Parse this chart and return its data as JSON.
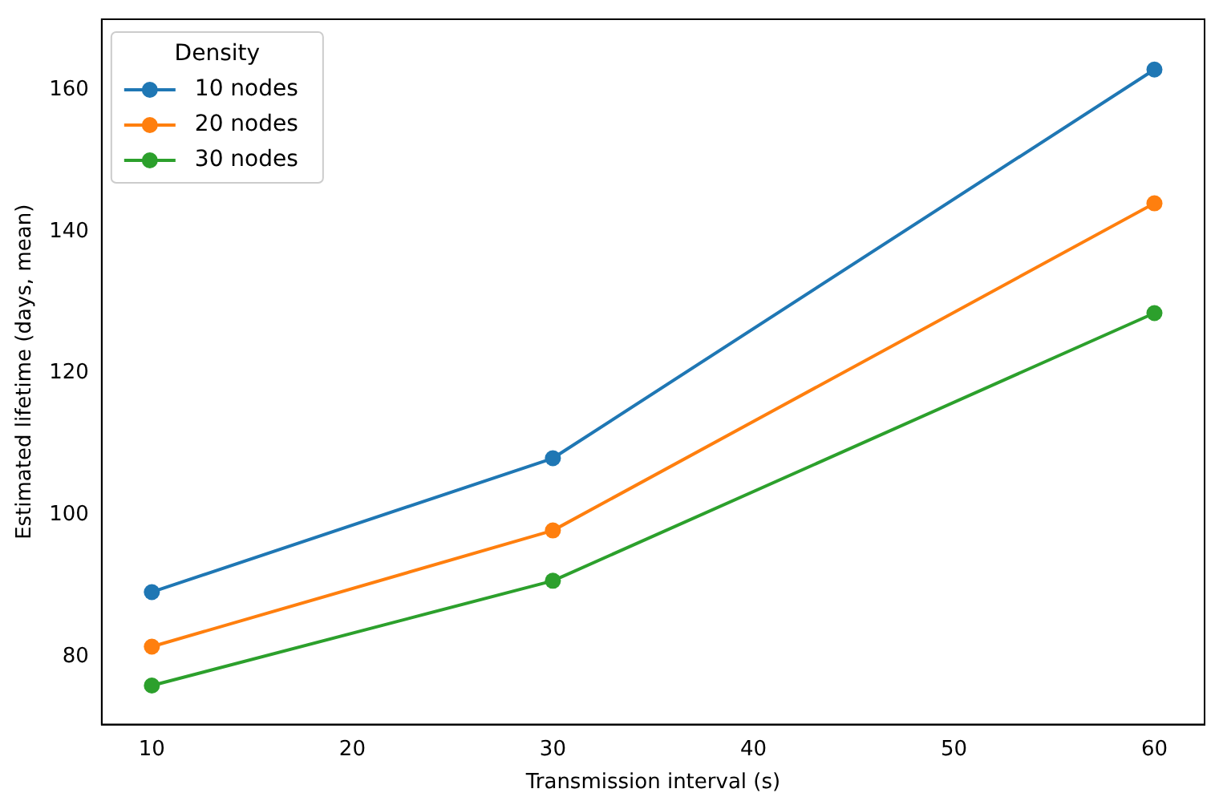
{
  "chart_data": {
    "type": "line",
    "xlabel": "Transmission interval (s)",
    "ylabel": "Estimated lifetime (days, mean)",
    "legend_title": "Density",
    "x": [
      10,
      30,
      60
    ],
    "series": [
      {
        "name": "10 nodes",
        "color": "#1f77b4",
        "values": [
          89.1,
          108.0,
          162.9
        ]
      },
      {
        "name": "20 nodes",
        "color": "#ff7f0e",
        "values": [
          81.4,
          97.8,
          144.0
        ]
      },
      {
        "name": "30 nodes",
        "color": "#2ca02c",
        "values": [
          75.9,
          90.7,
          128.5
        ]
      }
    ],
    "xlim": [
      7.5,
      62.5
    ],
    "xticks": [
      10,
      20,
      30,
      40,
      50,
      60
    ],
    "ylim": [
      70.4,
      170
    ],
    "yticks": [
      80,
      100,
      120,
      140,
      160
    ],
    "grid": false,
    "legend": "top left",
    "marker": "circle",
    "line_style": "solid"
  }
}
